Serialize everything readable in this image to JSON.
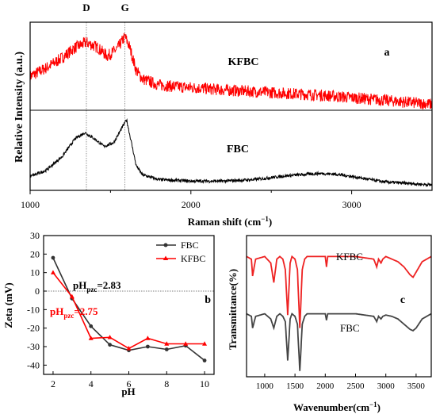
{
  "chart_data": [
    {
      "panel": "a",
      "type": "line",
      "xlabel_main": "Raman shift (cm",
      "xlabel_sup": "−1",
      "xlabel_end": ")",
      "ylabel": "Relative Intensity (a.u.)",
      "xlim": [
        1000,
        3500
      ],
      "xticks": [
        "1000",
        "2000",
        "3000"
      ],
      "minor_xticks": [
        1500,
        2500
      ],
      "peak_labels": [
        {
          "text": "D",
          "x": 1350
        },
        {
          "text": "G",
          "x": 1590
        }
      ],
      "series": [
        {
          "name": "KFBC",
          "color": "#ff0000",
          "noise": 0.07,
          "x": [
            1000,
            1100,
            1200,
            1280,
            1350,
            1420,
            1480,
            1540,
            1590,
            1620,
            1660,
            1700,
            1800,
            1900,
            2000,
            2200,
            2400,
            2600,
            2800,
            3000,
            3200,
            3500
          ],
          "y": [
            0.38,
            0.48,
            0.6,
            0.72,
            0.78,
            0.72,
            0.62,
            0.7,
            0.85,
            0.72,
            0.45,
            0.35,
            0.28,
            0.26,
            0.25,
            0.22,
            0.2,
            0.18,
            0.16,
            0.13,
            0.1,
            0.05
          ]
        },
        {
          "name": "FBC",
          "color": "#000000",
          "noise": 0.02,
          "x": [
            1000,
            1100,
            1200,
            1280,
            1340,
            1400,
            1460,
            1520,
            1560,
            1600,
            1630,
            1660,
            1700,
            1800,
            2000,
            2200,
            2400,
            2600,
            2800,
            2900,
            3000,
            3200,
            3500
          ],
          "y": [
            0.16,
            0.24,
            0.42,
            0.65,
            0.73,
            0.65,
            0.55,
            0.6,
            0.75,
            0.9,
            0.6,
            0.3,
            0.18,
            0.12,
            0.1,
            0.1,
            0.12,
            0.17,
            0.2,
            0.19,
            0.16,
            0.09,
            0.05
          ]
        }
      ]
    },
    {
      "panel": "b",
      "type": "line",
      "xlabel": "pH",
      "ylabel": "Zeta (mV)",
      "xlim": [
        1.5,
        10.5
      ],
      "ylim": [
        -45,
        30
      ],
      "xticks": [
        2,
        4,
        6,
        8,
        10
      ],
      "yticks": [
        -40,
        -30,
        -20,
        -10,
        0,
        10,
        20,
        30
      ],
      "series": [
        {
          "name": "FBC",
          "color": "#333333",
          "marker": "circle",
          "x": [
            2,
            3,
            4,
            5,
            6,
            7,
            8,
            9,
            10
          ],
          "y": [
            18,
            -4,
            -19,
            -29,
            -32,
            -30,
            -31.5,
            -29.5,
            -37.5
          ]
        },
        {
          "name": "KFBC",
          "color": "#ff0000",
          "marker": "triangle",
          "x": [
            2,
            3,
            4,
            5,
            6,
            7,
            8,
            9,
            10
          ],
          "y": [
            10,
            -3,
            -25.5,
            -25,
            -31,
            -25.5,
            -28.5,
            -28.5,
            -28.5
          ]
        }
      ],
      "annotations": [
        {
          "main": "pH",
          "sub": "pzc",
          "value": "=2.83",
          "color": "#000000"
        },
        {
          "main": "pH",
          "sub": "pzc",
          "value": "=2.75",
          "color": "#ff0000"
        }
      ]
    },
    {
      "panel": "c",
      "type": "line",
      "xlabel_main": "Wavenumber(cm",
      "xlabel_sup": "−1",
      "xlabel_end": ")",
      "ylabel": "Transmittance(%)",
      "xlim": [
        700,
        3750
      ],
      "xticks": [
        1000,
        1500,
        2000,
        2500,
        3000,
        3500
      ],
      "series": [
        {
          "name": "KFBC",
          "color": "#ee2222",
          "x": [
            700,
            780,
            800,
            850,
            1000,
            1100,
            1150,
            1200,
            1250,
            1300,
            1340,
            1380,
            1420,
            1450,
            1500,
            1540,
            1580,
            1620,
            1660,
            1700,
            1800,
            2000,
            2020,
            2040,
            2200,
            2500,
            2800,
            2850,
            2880,
            2920,
            2950,
            3000,
            3100,
            3200,
            3300,
            3400,
            3450,
            3500,
            3600,
            3750
          ],
          "y": [
            0.9,
            0.88,
            0.75,
            0.88,
            0.9,
            0.85,
            0.7,
            0.88,
            0.9,
            0.88,
            0.8,
            0.45,
            0.85,
            0.9,
            0.88,
            0.8,
            0.35,
            0.8,
            0.88,
            0.9,
            0.9,
            0.9,
            0.82,
            0.9,
            0.9,
            0.9,
            0.88,
            0.82,
            0.88,
            0.85,
            0.88,
            0.9,
            0.88,
            0.86,
            0.82,
            0.76,
            0.74,
            0.78,
            0.86,
            0.9
          ]
        },
        {
          "name": "FBC",
          "color": "#444444",
          "x": [
            700,
            780,
            800,
            850,
            1000,
            1100,
            1150,
            1200,
            1250,
            1300,
            1340,
            1380,
            1420,
            1450,
            1500,
            1540,
            1580,
            1620,
            1660,
            1700,
            1800,
            2000,
            2020,
            2040,
            2200,
            2500,
            2800,
            2850,
            2880,
            2920,
            2950,
            3000,
            3100,
            3200,
            3300,
            3400,
            3450,
            3500,
            3600,
            3750
          ],
          "y": [
            0.46,
            0.44,
            0.35,
            0.44,
            0.46,
            0.42,
            0.35,
            0.44,
            0.46,
            0.44,
            0.4,
            0.1,
            0.42,
            0.46,
            0.44,
            0.38,
            0.02,
            0.38,
            0.44,
            0.46,
            0.46,
            0.46,
            0.41,
            0.46,
            0.46,
            0.46,
            0.44,
            0.4,
            0.44,
            0.42,
            0.44,
            0.45,
            0.44,
            0.42,
            0.38,
            0.34,
            0.33,
            0.35,
            0.42,
            0.46
          ]
        }
      ]
    }
  ]
}
